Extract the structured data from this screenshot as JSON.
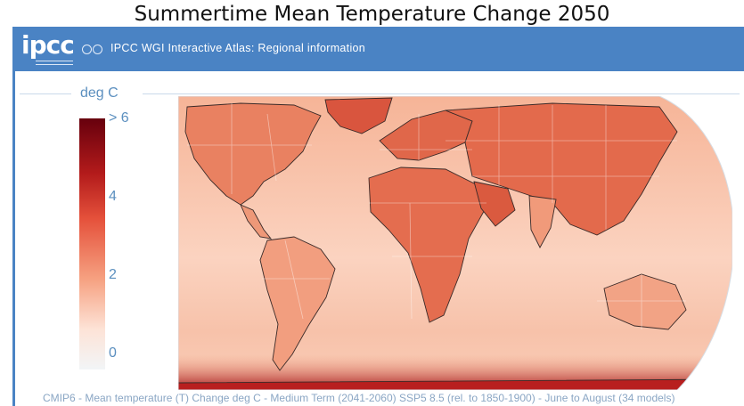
{
  "figure_title": "Summertime Mean Temperature Change 2050",
  "header": {
    "logo_text": "ipcc",
    "title": "IPCC WGI Interactive Atlas: Regional information",
    "bar_color": "#4a83c4"
  },
  "legend": {
    "unit": "deg C",
    "ticks": [
      {
        "label": "> 6",
        "value": 6
      },
      {
        "label": "4",
        "value": 4
      },
      {
        "label": "2",
        "value": 2
      },
      {
        "label": "0",
        "value": 0
      }
    ],
    "colors": [
      "#f2f5f7",
      "#fde3d7",
      "#f6a181",
      "#e5513b",
      "#b31b1b",
      "#67000d"
    ]
  },
  "caption": "CMIP6 - Mean temperature (T) Change deg C - Medium Term (2041-2060) SSP5 8.5 (rel. to 1850-1900) - June to August (34 models)"
}
